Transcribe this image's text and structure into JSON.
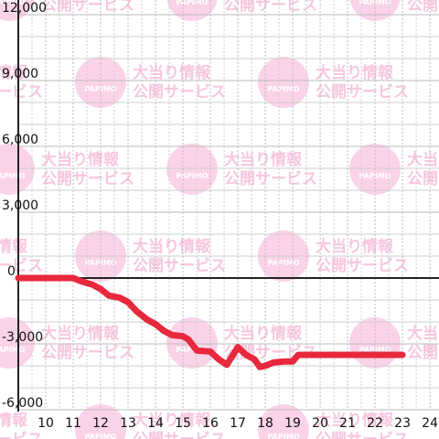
{
  "chart_data": {
    "type": "line",
    "watermark": {
      "line1": "大当り情報",
      "line2": "公開サービス",
      "logo": "PAPIMO"
    },
    "x": [
      9,
      11,
      11.3,
      11.7,
      12,
      12.3,
      12.7,
      13,
      13.3,
      13.7,
      14,
      14.3,
      14.6,
      15,
      15.2,
      15.5,
      16,
      16.3,
      16.6,
      17,
      17.3,
      17.6,
      17.8,
      18,
      18.3,
      18.7,
      19,
      19.2,
      23
    ],
    "series": [
      {
        "color": "#e8283c",
        "values": [
          0,
          0,
          -150,
          -300,
          -500,
          -800,
          -900,
          -1100,
          -1500,
          -1900,
          -2100,
          -2400,
          -2600,
          -2650,
          -2800,
          -3300,
          -3350,
          -3700,
          -3950,
          -3150,
          -3500,
          -3700,
          -4050,
          -4000,
          -3850,
          -3800,
          -3800,
          -3500,
          -3500
        ]
      }
    ],
    "xlim": [
      9,
      24.33
    ],
    "xticks": [
      10,
      11,
      12,
      13,
      14,
      15,
      16,
      17,
      18,
      19,
      20,
      21,
      22,
      23,
      24
    ],
    "ylim": [
      -6000,
      12000
    ],
    "yticks": [
      {
        "value": -6000,
        "label": "-6,000"
      },
      {
        "value": -3000,
        "label": "-3,000"
      },
      0,
      {
        "value": 3000,
        "label": "3,000"
      },
      {
        "value": 6000,
        "label": "6,000"
      },
      {
        "value": 9000,
        "label": "9,000"
      },
      {
        "value": 12000,
        "label": "12,000"
      }
    ],
    "grid": true
  }
}
